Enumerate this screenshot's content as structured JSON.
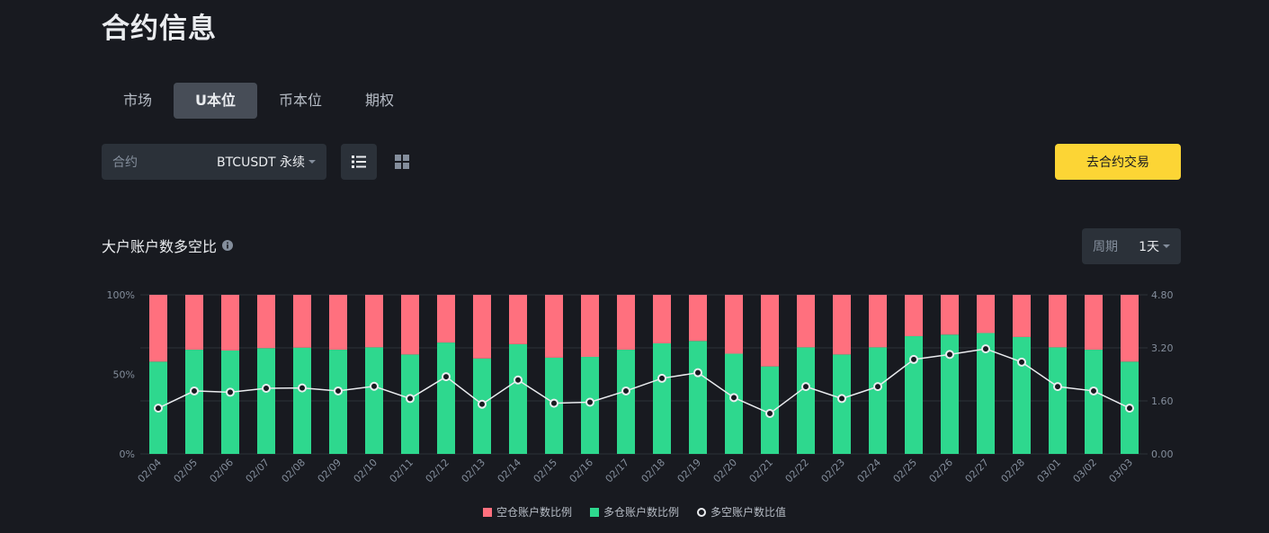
{
  "page": {
    "title": "合约信息"
  },
  "tabs": [
    {
      "label": "市场",
      "active": false
    },
    {
      "label": "U本位",
      "active": true
    },
    {
      "label": "币本位",
      "active": false
    },
    {
      "label": "期权",
      "active": false
    }
  ],
  "contract": {
    "label": "合约",
    "value": "BTCUSDT 永续"
  },
  "icons": {
    "list": "list-view-icon",
    "grid": "grid-view-icon",
    "info": "info-icon",
    "caret": "caret-down-icon"
  },
  "trade_button": {
    "label": "去合约交易"
  },
  "section": {
    "title": "大户账户数多空比"
  },
  "period": {
    "label": "周期",
    "value": "1天"
  },
  "colors": {
    "short": "#f6465d",
    "long": "#2ebd85",
    "short_bar": "#ff707e",
    "long_bar": "#2ed88e",
    "line": "#eaecef",
    "accent": "#fcd535"
  },
  "chart_data": {
    "type": "bar",
    "stacked": true,
    "categories": [
      "02/04",
      "02/05",
      "02/06",
      "02/07",
      "02/08",
      "02/09",
      "02/10",
      "02/11",
      "02/12",
      "02/13",
      "02/14",
      "02/15",
      "02/16",
      "02/17",
      "02/18",
      "02/19",
      "02/20",
      "02/21",
      "02/22",
      "02/23",
      "02/24",
      "02/25",
      "02/26",
      "02/27",
      "02/28",
      "03/01",
      "03/02",
      "03/03"
    ],
    "series": [
      {
        "name": "空仓账户数比例",
        "axis": "left",
        "values": [
          42.0,
          34.5,
          35.0,
          33.5,
          33.2,
          34.5,
          33.0,
          37.5,
          30.0,
          40.0,
          31.0,
          39.5,
          39.0,
          34.5,
          30.5,
          29.0,
          37.0,
          45.0,
          33.0,
          37.5,
          33.0,
          26.0,
          25.0,
          24.0,
          26.5,
          33.0,
          34.5,
          42.0
        ]
      },
      {
        "name": "多仓账户数比例",
        "axis": "left",
        "values": [
          58.0,
          65.5,
          65.0,
          66.5,
          66.8,
          65.5,
          67.0,
          62.5,
          70.0,
          60.0,
          69.0,
          60.5,
          61.0,
          65.5,
          69.5,
          71.0,
          63.0,
          55.0,
          67.0,
          62.5,
          67.0,
          74.0,
          75.0,
          76.0,
          73.5,
          67.0,
          65.5,
          58.0
        ]
      },
      {
        "name": "多空账户数比值",
        "type": "line",
        "axis": "right",
        "values": [
          1.38,
          1.9,
          1.86,
          1.98,
          1.99,
          1.9,
          2.04,
          1.67,
          2.33,
          1.5,
          2.23,
          1.53,
          1.56,
          1.9,
          2.28,
          2.45,
          1.7,
          1.22,
          2.03,
          1.67,
          2.03,
          2.85,
          3.0,
          3.17,
          2.77,
          2.03,
          1.9,
          1.38
        ]
      }
    ],
    "y_left": {
      "ticks": [
        "0%",
        "50%",
        "100%"
      ],
      "range": [
        0,
        100
      ]
    },
    "y_right": {
      "ticks": [
        "0.00",
        "1.60",
        "3.20",
        "4.80"
      ],
      "range": [
        0,
        4.8
      ]
    },
    "legend": {
      "placement": "bottom-center"
    },
    "grid": true
  }
}
